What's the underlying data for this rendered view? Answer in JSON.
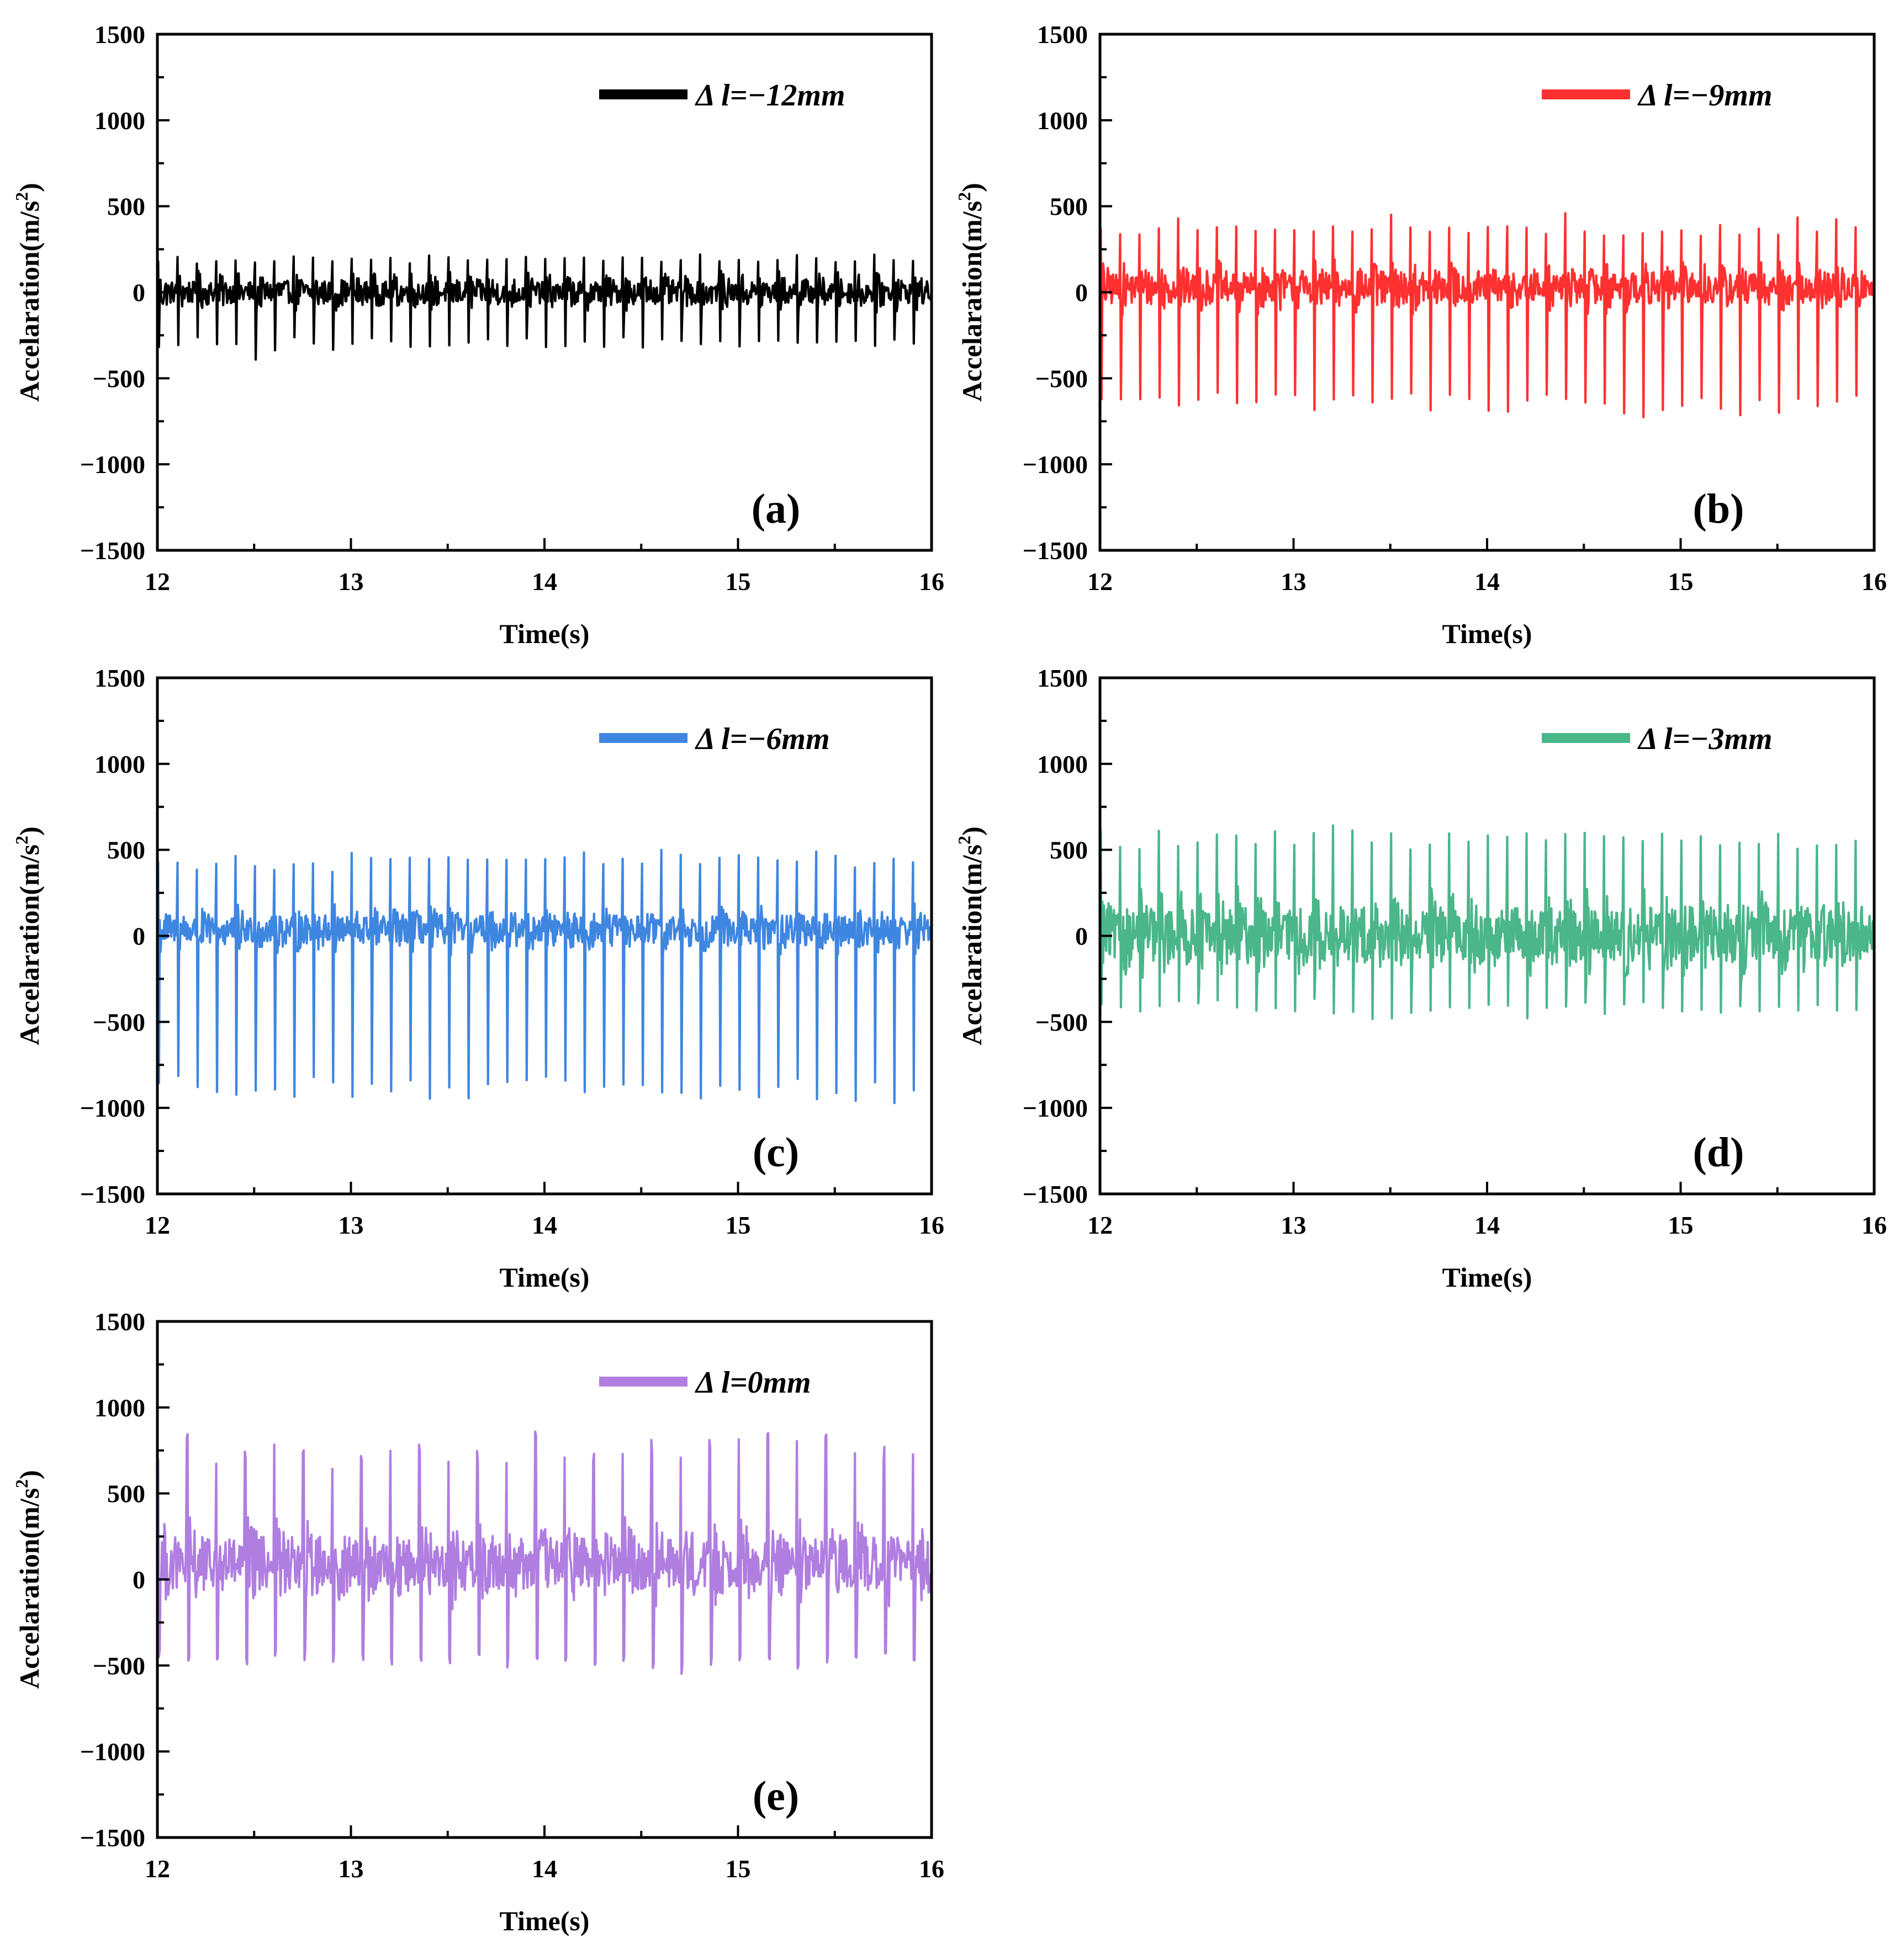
{
  "chart_data": [
    {
      "type": "line",
      "panel_label": "(a)",
      "legend": "Δ l=−12mm",
      "color": "#000000",
      "xlabel": "Time(s)",
      "ylabel": "Accelaration(m/s",
      "ylabel_sup": "2",
      "ylabel_close": ")",
      "xlim": [
        12,
        16
      ],
      "ylim": [
        -1500,
        1500
      ],
      "xticks": [
        "12",
        "13",
        "14",
        "15",
        "16"
      ],
      "yticks": [
        "1500",
        "1000",
        "500",
        "0",
        "−500",
        "−1000",
        "−1500"
      ],
      "impact_period_s": 0.1,
      "peaks_positive": [
        200,
        220,
        190,
        210,
        215,
        200,
        195,
        210,
        215,
        205,
        220,
        210,
        200,
        195,
        215,
        205,
        210,
        200,
        195,
        210,
        215,
        200,
        205,
        210,
        220,
        215,
        200,
        195,
        230,
        210,
        215,
        200,
        210,
        250,
        215,
        200,
        205,
        230,
        210,
        200
      ],
      "peaks_negative": [
        -330,
        -350,
        -300,
        -320,
        -330,
        -400,
        -360,
        -300,
        -310,
        -340,
        -330,
        -300,
        -330,
        -350,
        -320,
        -310,
        -330,
        -300,
        -320,
        -310,
        -330,
        -340,
        -310,
        -320,
        -300,
        -330,
        -310,
        -320,
        -330,
        -310,
        -340,
        -300,
        -320,
        -330,
        -310,
        -330,
        -300,
        -340,
        -310,
        -320
      ],
      "noise_band": [
        -130,
        130
      ]
    },
    {
      "type": "line",
      "panel_label": "(b)",
      "legend": "Δ l=−9mm",
      "color": "#ff3030",
      "xlabel": "Time(s)",
      "ylabel": "Accelaration(m/s",
      "ylabel_sup": "2",
      "ylabel_close": ")",
      "xlim": [
        12,
        16
      ],
      "ylim": [
        -1500,
        1500
      ],
      "xticks": [
        "12",
        "13",
        "14",
        "15",
        "16"
      ],
      "yticks": [
        "1500",
        "1000",
        "500",
        "0",
        "−500",
        "−1000",
        "−1500"
      ],
      "impact_period_s": 0.1,
      "peaks_positive": [
        380,
        390,
        380,
        395,
        470,
        385,
        380,
        390,
        385,
        380,
        390,
        380,
        385,
        390,
        380,
        460,
        385,
        380,
        390,
        385,
        380,
        395,
        380,
        385,
        490,
        390,
        380,
        385,
        380,
        390,
        385,
        380,
        395,
        380,
        385,
        390,
        500,
        380,
        430,
        410
      ],
      "peaks_negative": [
        -650,
        -660,
        -680,
        -700,
        -690,
        -700,
        -680,
        -690,
        -700,
        -680,
        -690,
        -700,
        -690,
        -680,
        -700,
        -690,
        -680,
        -700,
        -690,
        -710,
        -700,
        -720,
        -700,
        -690,
        -700,
        -680,
        -710,
        -720,
        -730,
        -700,
        -710,
        -690,
        -700,
        -750,
        -700,
        -710,
        -700,
        -690,
        -700,
        -700
      ],
      "noise_band": [
        -150,
        200
      ]
    },
    {
      "type": "line",
      "panel_label": "(c)",
      "legend": "Δ l=−6mm",
      "color": "#3f86e0",
      "xlabel": "Time(s)",
      "ylabel": "Accelaration(m/s",
      "ylabel_sup": "2",
      "ylabel_close": ")",
      "xlim": [
        12,
        16
      ],
      "ylim": [
        -1500,
        1500
      ],
      "xticks": [
        "12",
        "13",
        "14",
        "15",
        "16"
      ],
      "yticks": [
        "1500",
        "1000",
        "500",
        "0",
        "−500",
        "−1000",
        "−1500"
      ],
      "impact_period_s": 0.1,
      "peaks_positive": [
        470,
        450,
        430,
        480,
        480,
        470,
        420,
        430,
        460,
        420,
        500,
        470,
        450,
        480,
        480,
        470,
        480,
        490,
        470,
        460,
        470,
        480,
        490,
        470,
        470,
        480,
        500,
        520,
        490,
        480,
        470,
        460,
        470,
        480,
        490,
        470,
        460,
        470,
        480,
        460
      ],
      "peaks_negative": [
        -900,
        -950,
        -920,
        -950,
        -930,
        -940,
        -960,
        -940,
        -950,
        -930,
        -960,
        -940,
        -960,
        -980,
        -950,
        -930,
        -950,
        -960,
        -940,
        -950,
        -960,
        -980,
        -1040,
        -990,
        -960,
        -950,
        -970,
        -990,
        -1020,
        -980,
        -960,
        -950,
        -970,
        -960,
        -950,
        -960,
        -980,
        -1000,
        -1050,
        -960
      ],
      "noise_band": [
        -130,
        200
      ]
    },
    {
      "type": "line",
      "panel_label": "(d)",
      "legend": "Δ l=−3mm",
      "color": "#4ab68a",
      "xlabel": "Time(s)",
      "ylabel": "Accelaration(m/s",
      "ylabel_sup": "2",
      "ylabel_close": ")",
      "xlim": [
        12,
        16
      ],
      "ylim": [
        -1500,
        1500
      ],
      "xticks": [
        "12",
        "13",
        "14",
        "15",
        "16"
      ],
      "yticks": [
        "1500",
        "1000",
        "500",
        "0",
        "−500",
        "−1000",
        "−1500"
      ],
      "impact_period_s": 0.1,
      "peaks_positive": [
        680,
        590,
        560,
        640,
        600,
        580,
        600,
        610,
        590,
        630,
        620,
        600,
        650,
        620,
        600,
        620,
        580,
        600,
        650,
        620,
        650,
        620,
        600,
        620,
        610,
        600,
        590,
        600,
        580,
        600,
        610,
        600,
        600,
        590,
        600,
        610,
        590,
        600,
        600,
        590
      ],
      "peaks_negative": [
        -420,
        -450,
        -440,
        -460,
        -430,
        -450,
        -440,
        -460,
        -450,
        -440,
        -470,
        -430,
        -460,
        -450,
        -520,
        -480,
        -460,
        -450,
        -440,
        -470,
        -460,
        -450,
        -480,
        -460,
        -450,
        -440,
        -470,
        -460,
        -450,
        -440,
        -470,
        -460,
        -450,
        -440,
        -460,
        -450,
        -470,
        -450,
        -460,
        -500
      ],
      "noise_band": [
        -300,
        300
      ]
    },
    {
      "type": "line",
      "panel_label": "(e)",
      "legend": "Δ l=0mm",
      "color": "#b07ee0",
      "xlabel": "Time(s)",
      "ylabel": "Accelaration(m/s",
      "ylabel_sup": "2",
      "ylabel_close": ")",
      "xlim": [
        12,
        16
      ],
      "ylim": [
        -1500,
        1500
      ],
      "xticks": [
        "12",
        "13",
        "14",
        "15",
        "16"
      ],
      "yticks": [
        "1500",
        "1000",
        "500",
        "0",
        "−500",
        "−1000",
        "−1500"
      ],
      "impact_period_s": 0.15,
      "peaks_positive": [
        730,
        850,
        760,
        750,
        870,
        780,
        720,
        740,
        760,
        860,
        720,
        760,
        760,
        870,
        780,
        760,
        740,
        860,
        830,
        850,
        840,
        870,
        860,
        860,
        860,
        790,
        770
      ],
      "peaks_negative": [
        -480,
        -490,
        -480,
        -500,
        -480,
        -470,
        -480,
        -500,
        -520,
        -480,
        -500,
        -490,
        -520,
        -510,
        -500,
        -520,
        -510,
        -530,
        -570,
        -520,
        -500,
        -480,
        -520,
        -500,
        -520,
        -500,
        -500
      ],
      "noise_band": [
        -200,
        380
      ]
    }
  ]
}
